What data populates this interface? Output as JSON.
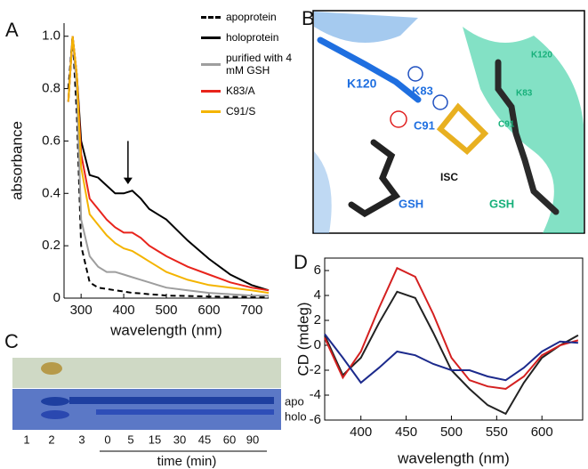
{
  "chart_data": [
    {
      "type": "line",
      "label": "A",
      "x_label": "wavelength (nm)",
      "y_label": "absorbance",
      "x": [
        270,
        280,
        290,
        300,
        320,
        340,
        360,
        380,
        400,
        420,
        440,
        460,
        480,
        500,
        550,
        600,
        650,
        700,
        740
      ],
      "xlim": [
        260,
        740
      ],
      "xticks": [
        300,
        400,
        500,
        600,
        700
      ],
      "ylim": [
        0,
        1.05
      ],
      "yticks": [
        0,
        0.2,
        0.4,
        0.6,
        0.8,
        {
          "value": 1,
          "label": "1.0"
        }
      ],
      "legend": "upper right",
      "series": [
        {
          "name": "apoprotein",
          "color": "#000000",
          "style": "dashed",
          "values": [
            0.8,
            1.0,
            0.7,
            0.2,
            0.06,
            0.04,
            0.035,
            0.03,
            0.025,
            0.02,
            0.018,
            0.015,
            0.013,
            0.01,
            0.008,
            0.006,
            0.005,
            0.004,
            0.003
          ]
        },
        {
          "name": "holoprotein",
          "color": "#000000",
          "style": "solid",
          "values": [
            0.75,
            1.0,
            0.85,
            0.6,
            0.47,
            0.46,
            0.43,
            0.4,
            0.4,
            0.41,
            0.38,
            0.34,
            0.32,
            0.3,
            0.22,
            0.15,
            0.09,
            0.05,
            0.03
          ]
        },
        {
          "name": "purified with 4 mM GSH",
          "color": "#9e9e9e",
          "style": "solid",
          "values": [
            0.75,
            1.0,
            0.8,
            0.3,
            0.16,
            0.12,
            0.1,
            0.1,
            0.09,
            0.08,
            0.07,
            0.06,
            0.05,
            0.04,
            0.03,
            0.02,
            0.015,
            0.01,
            0.01
          ]
        },
        {
          "name": "K83/A",
          "color": "#e8241c",
          "style": "solid",
          "values": [
            0.75,
            1.0,
            0.85,
            0.55,
            0.38,
            0.34,
            0.3,
            0.27,
            0.25,
            0.25,
            0.23,
            0.2,
            0.18,
            0.16,
            0.12,
            0.09,
            0.06,
            0.04,
            0.03
          ]
        },
        {
          "name": "C91/S",
          "color": "#f4b400",
          "style": "solid",
          "values": [
            0.75,
            1.0,
            0.85,
            0.5,
            0.32,
            0.28,
            0.24,
            0.21,
            0.19,
            0.18,
            0.16,
            0.14,
            0.12,
            0.1,
            0.07,
            0.05,
            0.04,
            0.03,
            0.02
          ]
        }
      ]
    },
    {
      "type": "line",
      "label": "D",
      "x_label": "wavelength (nm)",
      "y_label": "CD (mdeg)",
      "x": [
        360,
        380,
        400,
        420,
        440,
        460,
        480,
        500,
        520,
        540,
        560,
        580,
        600,
        620,
        640
      ],
      "xlim": [
        360,
        645
      ],
      "xticks": [
        400,
        450,
        500,
        550,
        600
      ],
      "ylim": [
        -6,
        7
      ],
      "yticks": [
        -6,
        -4,
        -2,
        0,
        2,
        4,
        6
      ],
      "frame": true,
      "series": [
        {
          "color": "#222222",
          "style": "solid",
          "values": [
            0.8,
            -2.4,
            -1.0,
            1.8,
            4.3,
            3.8,
            1.0,
            -2.0,
            -3.5,
            -4.8,
            -5.5,
            -3.0,
            -1.0,
            0.0,
            0.8
          ]
        },
        {
          "color": "#d42020",
          "style": "solid",
          "values": [
            0.6,
            -2.6,
            -0.5,
            3.0,
            6.2,
            5.5,
            2.5,
            -1.0,
            -2.8,
            -3.3,
            -3.5,
            -2.5,
            -0.8,
            0.0,
            0.4
          ]
        },
        {
          "color": "#1c2a8c",
          "style": "solid",
          "values": [
            0.9,
            -1.0,
            -3.0,
            -1.8,
            -0.5,
            -0.8,
            -1.5,
            -2.0,
            -2.0,
            -2.5,
            -2.8,
            -1.8,
            -0.5,
            0.3,
            0.2
          ]
        }
      ]
    }
  ],
  "panel_b": {
    "label": "B",
    "labels": [
      "K120",
      "K83",
      "C91",
      "ISC",
      "GSH",
      "GSH",
      "K120",
      "K83",
      "C91"
    ]
  },
  "panel_c": {
    "label": "C",
    "lanes": [
      "1",
      "2",
      "3",
      "0",
      "5",
      "15",
      "30",
      "45",
      "60",
      "90"
    ],
    "band_labels": [
      "apo",
      "holo"
    ],
    "axis_label": "time (min)"
  }
}
